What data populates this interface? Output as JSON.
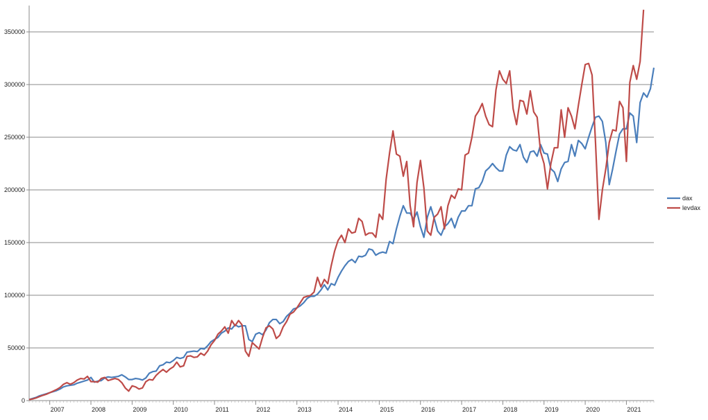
{
  "chart_data": {
    "type": "line",
    "title": "",
    "xlabel": "",
    "ylabel": "",
    "x_start": "2006-07",
    "x_step": "monthly",
    "x_ticks": [
      "2007",
      "2008",
      "2009",
      "2010",
      "2011",
      "2012",
      "2013",
      "2014",
      "2015",
      "2016",
      "2017",
      "2018",
      "2019",
      "2020",
      "2021"
    ],
    "y_ticks": [
      "0",
      "50000",
      "100000",
      "150000",
      "200000",
      "250000",
      "300000",
      "350000"
    ],
    "ylim": [
      0,
      375000
    ],
    "grid": "horizontal",
    "legend_position": "right",
    "series": [
      {
        "name": "dax",
        "color": "#4a7ebb",
        "values": [
          1000,
          2000,
          3000,
          4500,
          5500,
          6500,
          7500,
          8500,
          9500,
          11000,
          13000,
          14000,
          14500,
          15000,
          16500,
          17500,
          18500,
          19500,
          22000,
          17500,
          18500,
          19000,
          21500,
          22500,
          22000,
          22500,
          23000,
          24500,
          22500,
          20000,
          20000,
          21000,
          20500,
          19500,
          21500,
          26000,
          27500,
          28000,
          33000,
          34000,
          36500,
          36000,
          38000,
          41000,
          40000,
          41000,
          46000,
          46500,
          47000,
          46500,
          49500,
          49000,
          52000,
          56000,
          58000,
          60000,
          64000,
          66000,
          69000,
          68000,
          72000,
          70000,
          71000,
          71000,
          58000,
          56000,
          63000,
          64500,
          62500,
          67000,
          74000,
          77000,
          77000,
          73000,
          75000,
          80000,
          83000,
          87000,
          88000,
          90000,
          93000,
          97000,
          99000,
          99000,
          101000,
          105000,
          110000,
          105000,
          111000,
          109500,
          117000,
          123000,
          128000,
          132000,
          134000,
          131000,
          137000,
          136500,
          138000,
          144000,
          143000,
          138000,
          140000,
          141000,
          140000,
          151000,
          149000,
          163000,
          175000,
          185000,
          178000,
          178000,
          172000,
          179000,
          165000,
          155000,
          174000,
          184000,
          173000,
          161000,
          157000,
          165000,
          168000,
          173000,
          164000,
          174000,
          180000,
          180000,
          185000,
          185000,
          201000,
          202000,
          208000,
          218000,
          221000,
          225000,
          221000,
          218000,
          218000,
          233000,
          241000,
          238000,
          237000,
          243000,
          231000,
          226000,
          236000,
          237000,
          232000,
          243000,
          235000,
          234000,
          220000,
          217000,
          208000,
          220000,
          226000,
          227000,
          243000,
          232000,
          247000,
          244000,
          239000,
          250000,
          260000,
          269000,
          270000,
          265000,
          245000,
          205000,
          220000,
          237000,
          253000,
          258000,
          258000,
          273000,
          270000,
          245000,
          283000,
          292000,
          288000,
          296000,
          316000
        ]
      },
      {
        "name": "levdax",
        "color": "#be4b48",
        "values": [
          1000,
          1500,
          2500,
          3800,
          5000,
          6000,
          7500,
          9000,
          10500,
          12500,
          15500,
          17000,
          15500,
          17000,
          19500,
          21000,
          20500,
          23000,
          18000,
          18000,
          17500,
          21000,
          22000,
          19000,
          20000,
          21000,
          20000,
          17000,
          12000,
          9000,
          14000,
          13000,
          11000,
          12000,
          18000,
          20000,
          19500,
          24000,
          27000,
          29500,
          27000,
          30000,
          32000,
          36500,
          32000,
          33000,
          42000,
          42500,
          41000,
          41500,
          45000,
          43000,
          47000,
          53000,
          57000,
          63000,
          66000,
          70000,
          64000,
          76000,
          71000,
          76000,
          72000,
          47000,
          42000,
          55000,
          52000,
          49000,
          60000,
          69000,
          71000,
          68000,
          59000,
          62000,
          70000,
          75000,
          82000,
          84000,
          88000,
          93000,
          98000,
          99000,
          100000,
          103000,
          117000,
          108000,
          115000,
          111000,
          128000,
          142000,
          152000,
          157000,
          150000,
          163000,
          159000,
          160000,
          173000,
          170000,
          157000,
          159000,
          159000,
          155000,
          177000,
          172000,
          210000,
          235000,
          256000,
          234000,
          232000,
          213000,
          227000,
          185000,
          165000,
          207000,
          228000,
          202000,
          161000,
          157000,
          174000,
          177000,
          184000,
          163000,
          185000,
          195000,
          192000,
          201000,
          200000,
          233000,
          235000,
          250000,
          270000,
          275000,
          282000,
          270000,
          262000,
          260000,
          295000,
          313000,
          305000,
          301000,
          313000,
          277000,
          262000,
          285000,
          284000,
          272000,
          294000,
          274000,
          269000,
          236000,
          225000,
          201000,
          225000,
          240000,
          240000,
          276000,
          250000,
          278000,
          270000,
          258000,
          280000,
          300000,
          319000,
          320000,
          309000,
          245000,
          172000,
          200000,
          220000,
          245000,
          257000,
          256000,
          284000,
          278000,
          227000,
          302000,
          318000,
          305000,
          322000,
          371000
        ]
      }
    ]
  }
}
